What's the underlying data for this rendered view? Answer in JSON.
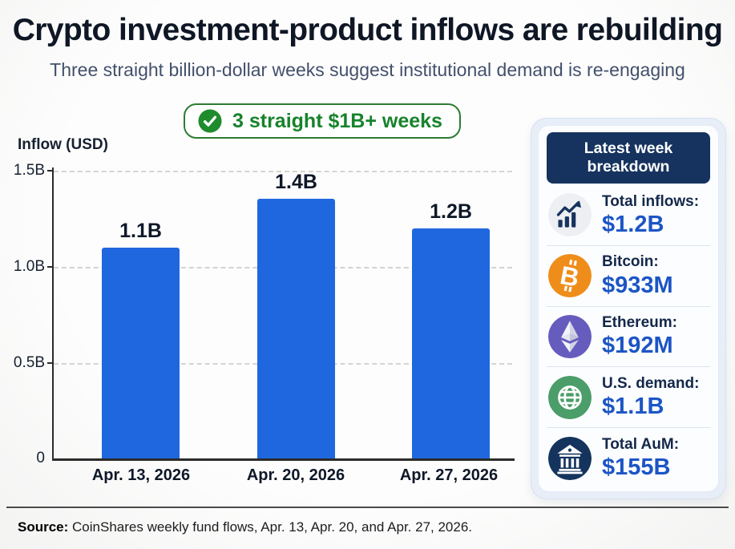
{
  "page": {
    "title": "Crypto investment-product inflows are rebuilding",
    "subtitle": "Three straight billion-dollar weeks suggest institutional demand is re-engaging",
    "source_label": "Source:",
    "source_text": " CoinShares weekly fund flows, Apr. 13, Apr. 20, and Apr. 27, 2026."
  },
  "badge": {
    "label": "3 straight $1B+ weeks",
    "icon": "check-circle-icon",
    "text_color": "#17832b",
    "circle_color": "#1e8b2d"
  },
  "chart_data": {
    "type": "bar",
    "title": "",
    "ylabel": "Inflow (USD)",
    "xlabel": "",
    "categories": [
      "Apr. 13, 2026",
      "Apr. 20, 2026",
      "Apr. 27, 2026"
    ],
    "values": [
      1.1,
      1.4,
      1.2
    ],
    "value_labels": [
      "1.1B",
      "1.4B",
      "1.2B"
    ],
    "unit": "billions USD",
    "ylim": [
      0,
      1.5
    ],
    "yticks": [
      "1.5B",
      "1.0B",
      "0.5B",
      "0"
    ],
    "grid": "horizontal dashed at 0.5B, 1.0B, 1.5B",
    "legend": "none",
    "bar_color": "#1f67de"
  },
  "panel": {
    "header": "Latest week breakdown",
    "header_bg": "#16335f",
    "value_color": "#1c55c5",
    "rows": [
      {
        "icon": "chart-up-icon",
        "icon_bg": "#edeff3",
        "label": "Total inflows:",
        "value": "$1.2B"
      },
      {
        "icon": "bitcoin-icon",
        "icon_bg": "#ef8d1a",
        "label": "Bitcoin:",
        "value": "$933M"
      },
      {
        "icon": "ethereum-icon",
        "icon_bg": "#665cbe",
        "label": "Ethereum:",
        "value": "$192M"
      },
      {
        "icon": "globe-icon",
        "icon_bg": "#4b9d69",
        "label": "U.S. demand:",
        "value": "$1.1B"
      },
      {
        "icon": "bank-icon",
        "icon_bg": "#14345e",
        "label": "Total AuM:",
        "value": "$155B"
      }
    ]
  }
}
